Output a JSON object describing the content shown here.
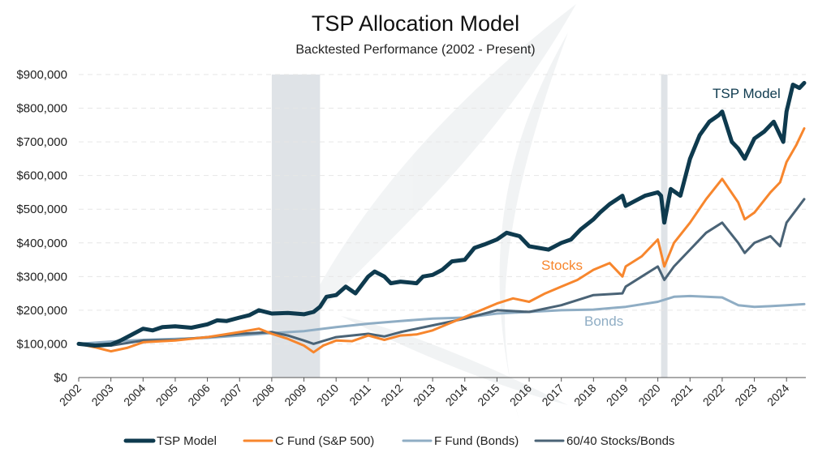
{
  "chart_data": {
    "type": "line",
    "title": "TSP Allocation Model",
    "subtitle": "Backtested Performance (2002 - Present)",
    "xlabel": "",
    "ylabel": "",
    "xlim": [
      2002,
      2024.6
    ],
    "ylim": [
      0,
      900000
    ],
    "yticks": [
      {
        "value": 0,
        "label": "$0"
      },
      {
        "value": 100000,
        "label": "$100,000"
      },
      {
        "value": 200000,
        "label": "$200,000"
      },
      {
        "value": 300000,
        "label": "$300,000"
      },
      {
        "value": 400000,
        "label": "$400,000"
      },
      {
        "value": 500000,
        "label": "$500,000"
      },
      {
        "value": 600000,
        "label": "$600,000"
      },
      {
        "value": 700000,
        "label": "$700,000"
      },
      {
        "value": 800000,
        "label": "$800,000"
      },
      {
        "value": 900000,
        "label": "$900,000"
      }
    ],
    "xticks": [
      "2002",
      "2003",
      "2004",
      "2005",
      "2006",
      "2007",
      "2008",
      "2009",
      "2010",
      "2011",
      "2012",
      "2013",
      "2014",
      "2015",
      "2016",
      "2017",
      "2018",
      "2019",
      "2020",
      "2021",
      "2022",
      "2023",
      "2024"
    ],
    "shaded_periods": [
      {
        "start": 2008.0,
        "end": 2009.5
      },
      {
        "start": 2020.1,
        "end": 2020.3
      }
    ],
    "series": [
      {
        "name": "TSP Model",
        "label": "TSP Model",
        "color": "#0e3a4e",
        "x": [
          2002,
          2002.5,
          2003,
          2003.3,
          2003.6,
          2004,
          2004.3,
          2004.6,
          2005,
          2005.5,
          2006,
          2006.3,
          2006.6,
          2007,
          2007.3,
          2007.6,
          2008,
          2008.5,
          2009,
          2009.3,
          2009.5,
          2009.7,
          2010,
          2010.3,
          2010.6,
          2011,
          2011.2,
          2011.5,
          2011.7,
          2012,
          2012.5,
          2012.7,
          2013,
          2013.3,
          2013.6,
          2014,
          2014.3,
          2014.6,
          2015,
          2015.3,
          2015.5,
          2015.7,
          2016,
          2016.3,
          2016.6,
          2017,
          2017.3,
          2017.6,
          2018,
          2018.2,
          2018.5,
          2018.9,
          2019,
          2019.3,
          2019.6,
          2020,
          2020.1,
          2020.2,
          2020.4,
          2020.7,
          2021,
          2021.3,
          2021.6,
          2021.9,
          2022,
          2022.3,
          2022.5,
          2022.7,
          2023,
          2023.3,
          2023.6,
          2023.9,
          2024,
          2024.2,
          2024.4,
          2024.55
        ],
        "values": [
          100000,
          95000,
          98000,
          110000,
          125000,
          145000,
          140000,
          150000,
          152000,
          148000,
          158000,
          170000,
          168000,
          178000,
          185000,
          200000,
          190000,
          192000,
          188000,
          195000,
          210000,
          240000,
          245000,
          270000,
          250000,
          300000,
          315000,
          300000,
          280000,
          285000,
          280000,
          300000,
          305000,
          320000,
          345000,
          350000,
          385000,
          395000,
          410000,
          430000,
          425000,
          420000,
          390000,
          385000,
          380000,
          400000,
          410000,
          440000,
          470000,
          490000,
          515000,
          540000,
          510000,
          525000,
          540000,
          550000,
          540000,
          460000,
          560000,
          540000,
          650000,
          720000,
          760000,
          780000,
          790000,
          700000,
          680000,
          650000,
          710000,
          730000,
          760000,
          700000,
          790000,
          870000,
          860000,
          875000
        ]
      },
      {
        "name": "C Fund (S&P 500)",
        "label": "Stocks",
        "color": "#f7862d",
        "x": [
          2002,
          2002.5,
          2003,
          2003.5,
          2004,
          2005,
          2006,
          2007,
          2007.6,
          2008,
          2008.5,
          2009,
          2009.3,
          2009.6,
          2010,
          2010.5,
          2011,
          2011.5,
          2012,
          2012.5,
          2013,
          2013.5,
          2014,
          2014.5,
          2015,
          2015.5,
          2016,
          2016.5,
          2017,
          2017.5,
          2018,
          2018.5,
          2018.9,
          2019,
          2019.5,
          2020,
          2020.2,
          2020.5,
          2021,
          2021.5,
          2022,
          2022.5,
          2022.7,
          2023,
          2023.5,
          2023.8,
          2024,
          2024.3,
          2024.55
        ],
        "values": [
          100000,
          90000,
          78000,
          88000,
          105000,
          110000,
          120000,
          135000,
          145000,
          130000,
          115000,
          95000,
          75000,
          95000,
          110000,
          108000,
          125000,
          112000,
          125000,
          128000,
          140000,
          160000,
          180000,
          200000,
          220000,
          235000,
          225000,
          250000,
          270000,
          290000,
          320000,
          340000,
          300000,
          330000,
          360000,
          410000,
          330000,
          400000,
          460000,
          530000,
          590000,
          520000,
          470000,
          490000,
          550000,
          580000,
          640000,
          690000,
          740000
        ]
      },
      {
        "name": "F Fund (Bonds)",
        "label": "Bonds",
        "color": "#8fadc4",
        "x": [
          2002,
          2003,
          2004,
          2005,
          2006,
          2007,
          2008,
          2009,
          2010,
          2011,
          2012,
          2013,
          2014,
          2015,
          2016,
          2017,
          2018,
          2019,
          2020,
          2020.5,
          2021,
          2021.5,
          2022,
          2022.5,
          2023,
          2023.5,
          2024,
          2024.55
        ],
        "values": [
          100000,
          107000,
          112000,
          115000,
          118000,
          125000,
          132000,
          138000,
          150000,
          160000,
          168000,
          175000,
          178000,
          190000,
          195000,
          200000,
          202000,
          210000,
          225000,
          240000,
          242000,
          240000,
          238000,
          215000,
          210000,
          212000,
          215000,
          218000
        ]
      },
      {
        "name": "60/40 Stocks/Bonds",
        "label": "",
        "color": "#4a6376",
        "x": [
          2002,
          2003,
          2004,
          2005,
          2006,
          2007,
          2008,
          2008.5,
          2009,
          2009.3,
          2010,
          2011,
          2011.5,
          2012,
          2013,
          2014,
          2015,
          2016,
          2017,
          2018,
          2018.9,
          2019,
          2019.5,
          2020,
          2020.2,
          2020.5,
          2021,
          2021.5,
          2022,
          2022.5,
          2022.7,
          2023,
          2023.5,
          2023.8,
          2024,
          2024.55
        ],
        "values": [
          100000,
          95000,
          110000,
          112000,
          120000,
          130000,
          135000,
          125000,
          110000,
          100000,
          120000,
          130000,
          122000,
          135000,
          155000,
          175000,
          200000,
          195000,
          215000,
          245000,
          250000,
          270000,
          300000,
          330000,
          290000,
          330000,
          380000,
          430000,
          460000,
          400000,
          370000,
          400000,
          420000,
          390000,
          460000,
          530000
        ]
      }
    ],
    "series_labels": {
      "tsp": "TSP Model",
      "stocks": "Stocks",
      "bonds": "Bonds"
    },
    "legend": {
      "position": "bottom",
      "items": [
        {
          "name": "TSP Model",
          "color": "#0e3a4e"
        },
        {
          "name": "C Fund (S&P 500)",
          "color": "#f7862d"
        },
        {
          "name": "F Fund (Bonds)",
          "color": "#8fadc4"
        },
        {
          "name": "60/40 Stocks/Bonds",
          "color": "#4a6376"
        }
      ]
    }
  }
}
